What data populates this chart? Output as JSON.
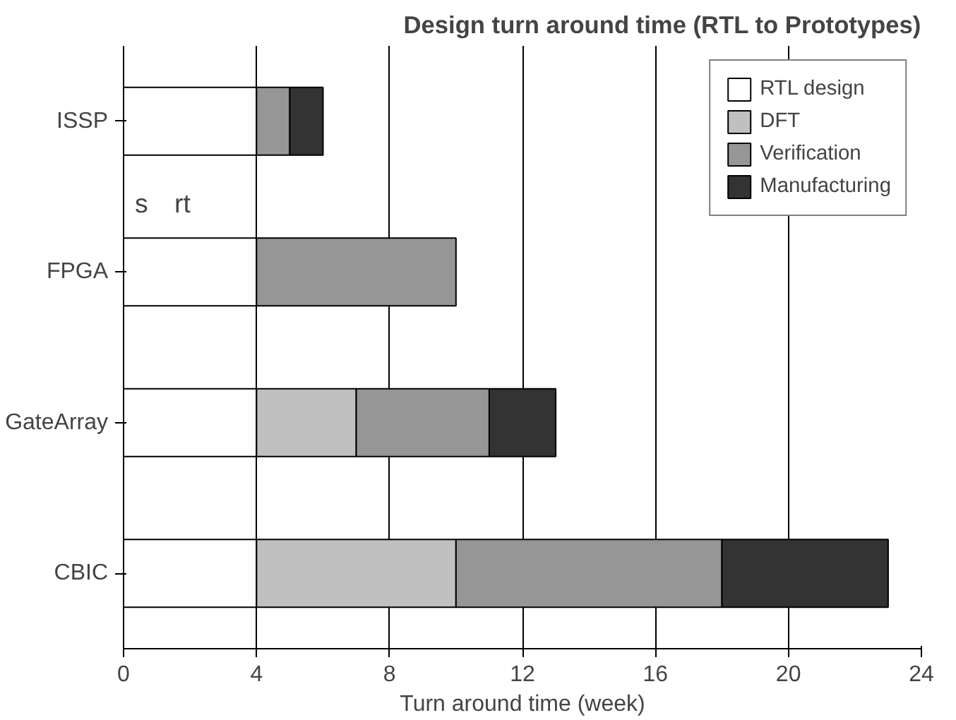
{
  "chart_data": {
    "type": "bar",
    "orientation": "horizontal",
    "stacked": true,
    "title": "Design turn around time (RTL to Prototypes)",
    "xlabel": "Turn around time (week)",
    "categories": [
      "ISSP",
      "FPGA",
      "GateArray",
      "CBIC"
    ],
    "series": [
      {
        "name": "RTL design",
        "color": "#ffffff",
        "values": [
          4,
          4,
          4,
          4
        ]
      },
      {
        "name": "DFT",
        "color": "#c0c0c0",
        "values": [
          0,
          0,
          3,
          6
        ]
      },
      {
        "name": "Verification",
        "color": "#969696",
        "values": [
          1,
          6,
          4,
          8
        ]
      },
      {
        "name": "Manufacturing",
        "color": "#333333",
        "values": [
          1,
          0,
          2,
          5
        ]
      }
    ],
    "xlim": [
      0,
      24
    ],
    "xticks": [
      0,
      4,
      8,
      12,
      16,
      20,
      24
    ],
    "grid": "x",
    "legend": "top right",
    "annotations": [
      "s",
      "rt"
    ]
  }
}
